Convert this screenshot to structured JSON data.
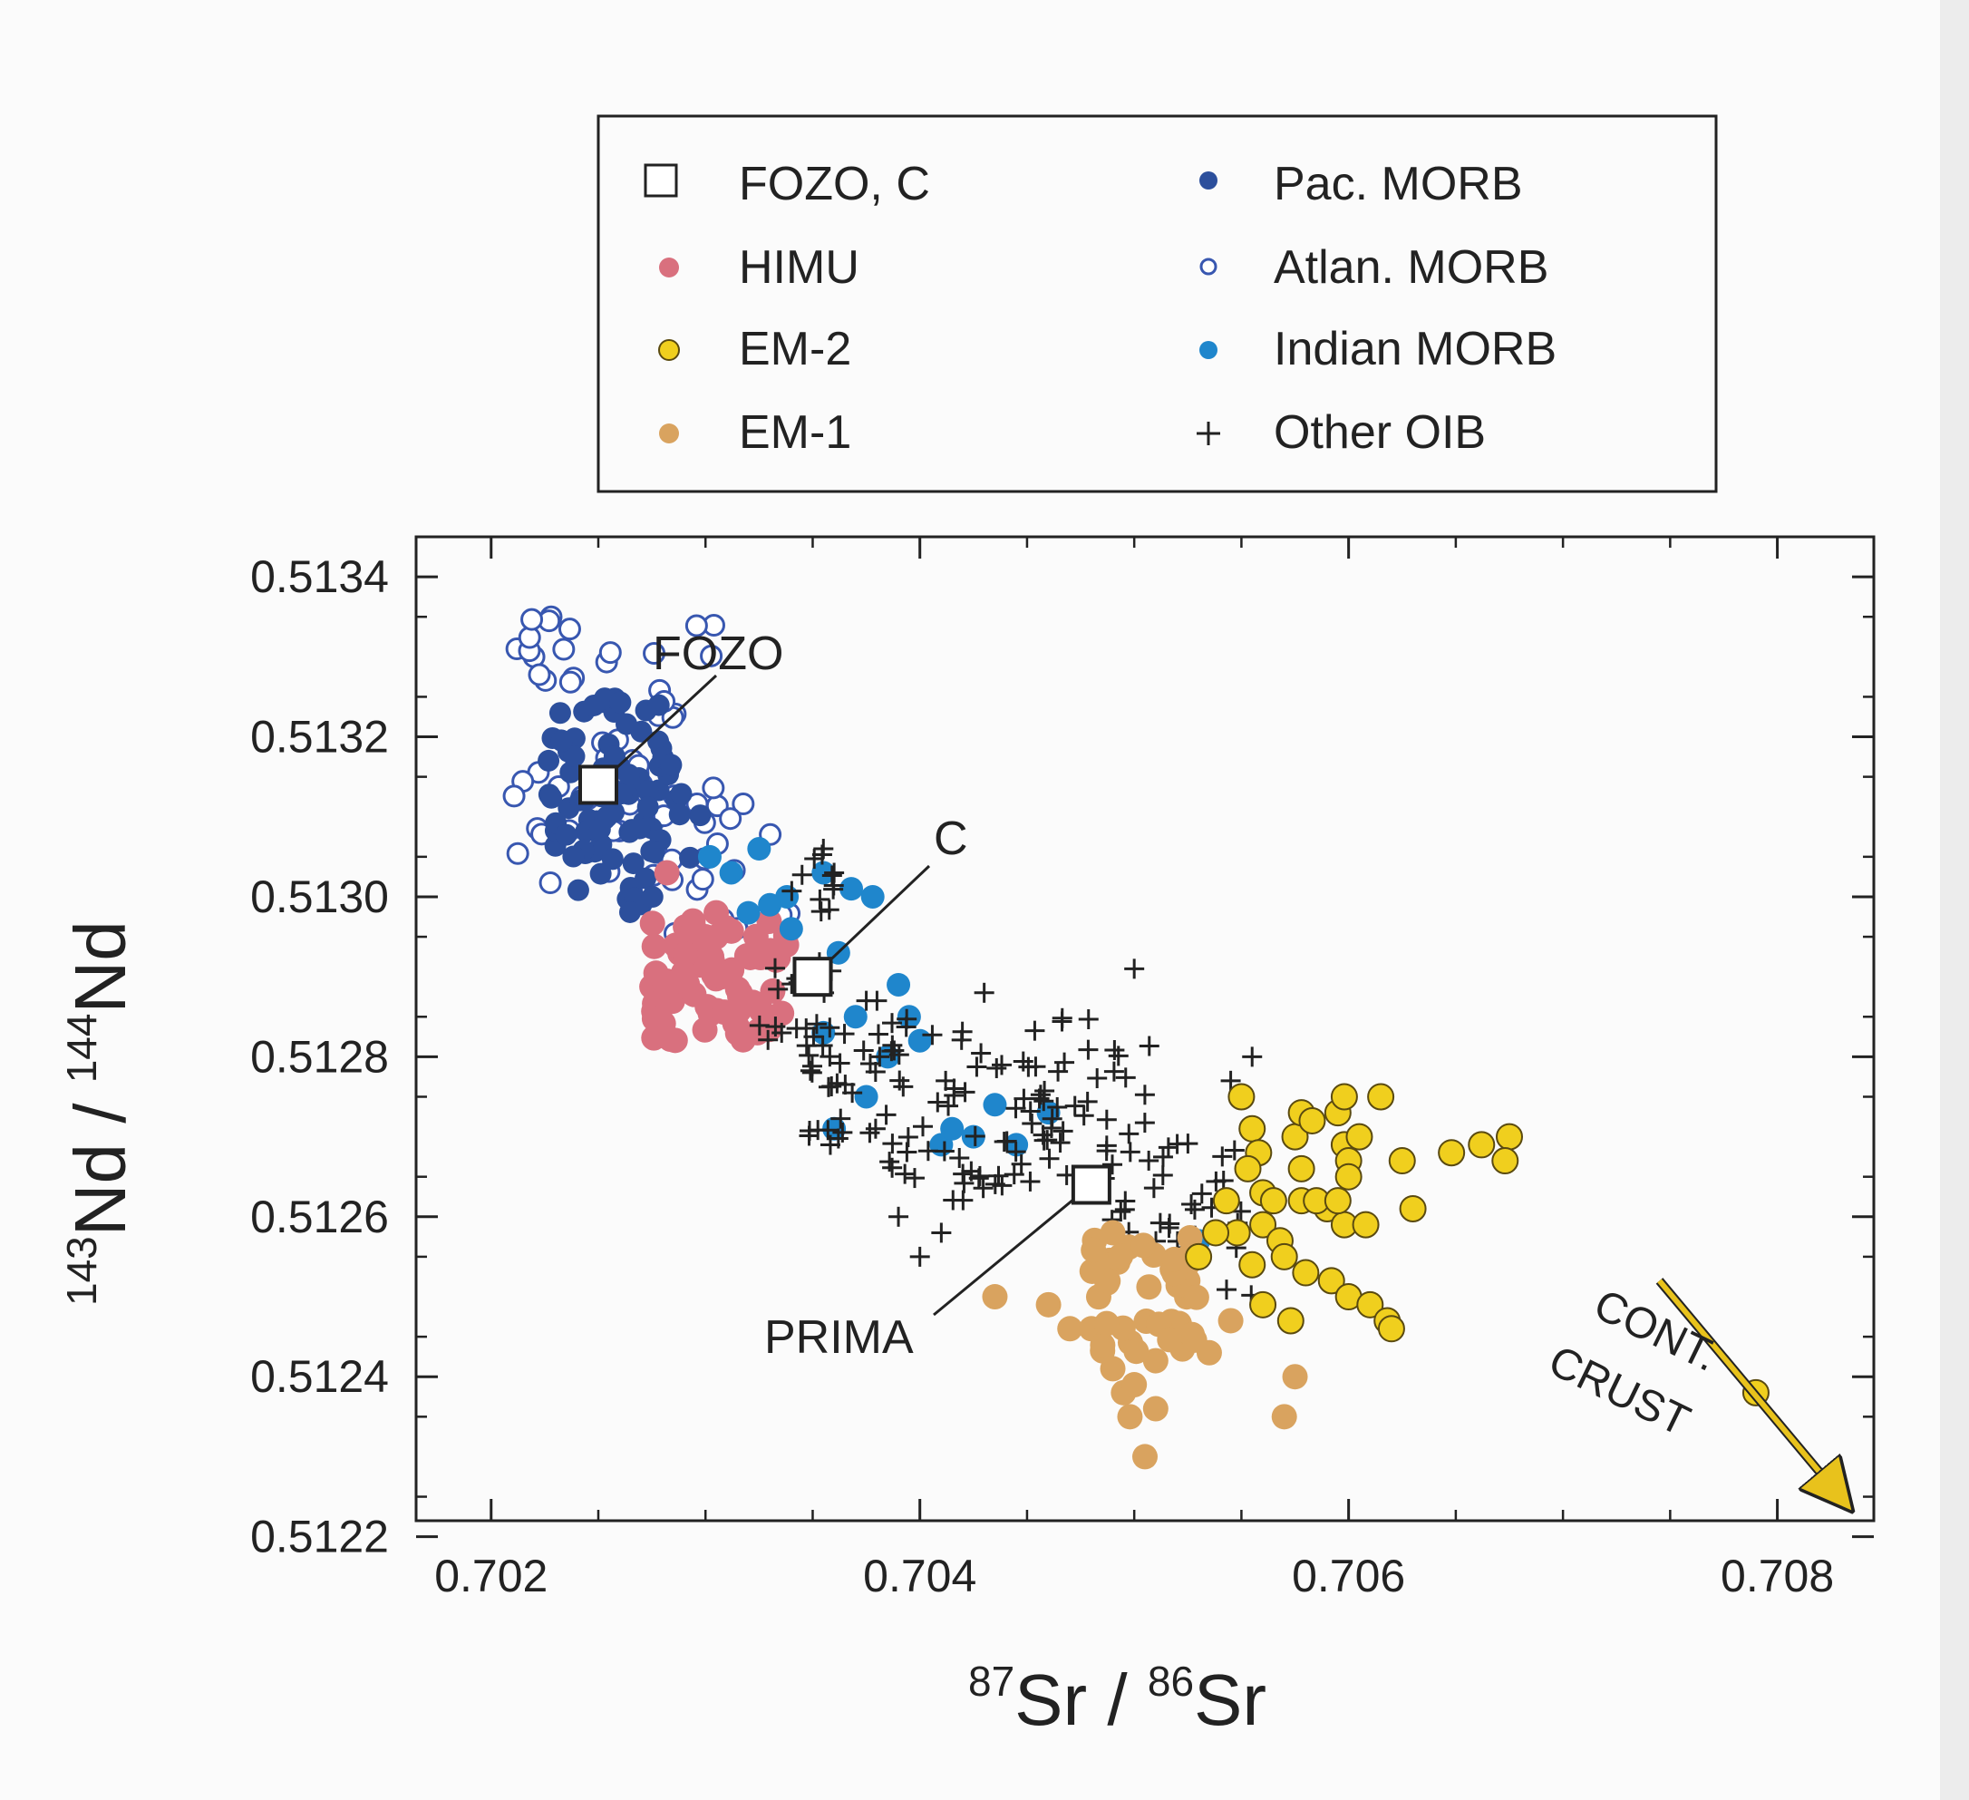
{
  "colors": {
    "pac_morb": "#2c4f9c",
    "atlan_morb_edge": "#3857b0",
    "indian_morb": "#1f86cc",
    "himu": "#d9707e",
    "em2_fill": "#f0cf1e",
    "em2_edge": "#5a4a10",
    "em1": "#d9a35f",
    "other_oib": "#222222",
    "arrow": "#e8c21c"
  },
  "legend": {
    "fozo_c": "FOZO, C",
    "himu": "HIMU",
    "em2": "EM-2",
    "em1": "EM-1",
    "pac_morb": "Pac. MORB",
    "atlan_morb": "Atlan. MORB",
    "indian_morb": "Indian MORB",
    "other_oib": "Other OIB"
  },
  "axes": {
    "ylabel": {
      "sup1": "143",
      "base1": "Nd / ",
      "sup2": "144",
      "base2": "Nd"
    },
    "xlabel": {
      "sup1": "87",
      "base1": "Sr / ",
      "sup2": "86",
      "base2": "Sr"
    },
    "xticks": [
      "0.702",
      "0.704",
      "0.706",
      "0.708"
    ],
    "yticks": [
      "0.5122",
      "0.5124",
      "0.5126",
      "0.5128",
      "0.5130",
      "0.5132",
      "0.5134"
    ]
  },
  "annotations": {
    "fozo": "FOZO",
    "c": "C",
    "prima": "PRIMA",
    "cont": "CONT.",
    "crust": "CRUST"
  },
  "chart_data": {
    "type": "scatter",
    "xlim": [
      0.70165,
      0.70845
    ],
    "ylim": [
      0.51222,
      0.51345
    ],
    "legend_position": "top, above plot",
    "grid": false,
    "components": [
      {
        "name": "FOZO",
        "x": 0.7025,
        "y": 0.51314
      },
      {
        "name": "C",
        "x": 0.7035,
        "y": 0.5129
      },
      {
        "name": "PRIMA",
        "x": 0.7048,
        "y": 0.51264
      }
    ],
    "arrow": {
      "label": "CONT. CRUST",
      "from": [
        0.70745,
        0.51252
      ],
      "to": [
        0.7084,
        0.51223
      ]
    },
    "series": [
      {
        "name": "Pac. MORB",
        "clusters": [
          {
            "x": [
              0.70225,
              0.70285
            ],
            "y": [
              0.51305,
              0.51325
            ],
            "n": 60
          },
          {
            "x": [
              0.70235,
              0.703
            ],
            "y": [
              0.51298,
              0.51318
            ],
            "n": 30
          }
        ]
      },
      {
        "name": "Atlan. MORB",
        "clusters": [
          {
            "x": [
              0.7021,
              0.7031
            ],
            "y": [
              0.513,
              0.51335
            ],
            "n": 55
          },
          {
            "x": [
              0.7028,
              0.7035
            ],
            "y": [
              0.51295,
              0.51315
            ],
            "n": 20
          }
        ],
        "points": [
          [
            0.70228,
            0.51335
          ],
          [
            0.70212,
            0.51331
          ],
          [
            0.7022,
            0.5133
          ]
        ]
      },
      {
        "name": "Indian MORB",
        "points": [
          [
            0.70302,
            0.51305
          ],
          [
            0.70312,
            0.51303
          ],
          [
            0.70325,
            0.51306
          ],
          [
            0.70338,
            0.513
          ],
          [
            0.70355,
            0.51303
          ],
          [
            0.70368,
            0.51301
          ],
          [
            0.70378,
            0.513
          ],
          [
            0.7032,
            0.51298
          ],
          [
            0.7034,
            0.51296
          ],
          [
            0.70362,
            0.51293
          ],
          [
            0.7037,
            0.51285
          ],
          [
            0.7039,
            0.51289
          ],
          [
            0.70395,
            0.51285
          ],
          [
            0.704,
            0.51282
          ],
          [
            0.70385,
            0.5128
          ],
          [
            0.70375,
            0.51275
          ],
          [
            0.70355,
            0.51283
          ],
          [
            0.7036,
            0.51271
          ],
          [
            0.7041,
            0.51269
          ],
          [
            0.70415,
            0.51271
          ],
          [
            0.70425,
            0.5127
          ],
          [
            0.70435,
            0.51274
          ],
          [
            0.70445,
            0.51269
          ],
          [
            0.7046,
            0.51273
          ],
          [
            0.7053,
            0.51257
          ],
          [
            0.7033,
            0.51299
          ]
        ]
      },
      {
        "name": "HIMU",
        "clusters": [
          {
            "x": [
              0.70275,
              0.7034
            ],
            "y": [
              0.51282,
              0.51297
            ],
            "n": 75
          }
        ],
        "points": [
          [
            0.70282,
            0.51303
          ],
          [
            0.703,
            0.51295
          ],
          [
            0.70305,
            0.51298
          ]
        ]
      },
      {
        "name": "EM-2",
        "points": [
          [
            0.7055,
            0.51275
          ],
          [
            0.70555,
            0.51271
          ],
          [
            0.70558,
            0.51268
          ],
          [
            0.70553,
            0.51266
          ],
          [
            0.7056,
            0.51263
          ],
          [
            0.70565,
            0.51262
          ],
          [
            0.70575,
            0.5127
          ],
          [
            0.70578,
            0.51273
          ],
          [
            0.70583,
            0.51272
          ],
          [
            0.70595,
            0.51273
          ],
          [
            0.70598,
            0.51269
          ],
          [
            0.706,
            0.51267
          ],
          [
            0.70605,
            0.5127
          ],
          [
            0.70598,
            0.51275
          ],
          [
            0.706,
            0.51265
          ],
          [
            0.7056,
            0.51259
          ],
          [
            0.70568,
            0.51257
          ],
          [
            0.70578,
            0.51262
          ],
          [
            0.7059,
            0.51261
          ],
          [
            0.70598,
            0.51259
          ],
          [
            0.70608,
            0.51259
          ],
          [
            0.7057,
            0.51255
          ],
          [
            0.7058,
            0.51253
          ],
          [
            0.70592,
            0.51252
          ],
          [
            0.706,
            0.5125
          ],
          [
            0.7061,
            0.51249
          ],
          [
            0.70618,
            0.51247
          ],
          [
            0.7056,
            0.51249
          ],
          [
            0.70573,
            0.51247
          ],
          [
            0.70578,
            0.51266
          ],
          [
            0.70585,
            0.51262
          ],
          [
            0.70595,
            0.51262
          ],
          [
            0.70543,
            0.51262
          ],
          [
            0.70548,
            0.51258
          ],
          [
            0.70555,
            0.51254
          ],
          [
            0.7053,
            0.51255
          ],
          [
            0.70538,
            0.51258
          ],
          [
            0.70615,
            0.51275
          ],
          [
            0.70625,
            0.51267
          ],
          [
            0.7063,
            0.51261
          ],
          [
            0.70648,
            0.51268
          ],
          [
            0.70662,
            0.51269
          ],
          [
            0.70675,
            0.5127
          ],
          [
            0.70673,
            0.51267
          ],
          [
            0.7062,
            0.51246
          ],
          [
            0.7079,
            0.51238
          ]
        ]
      },
      {
        "name": "EM-1",
        "clusters": [
          {
            "x": [
              0.7048,
              0.7053
            ],
            "y": [
              0.51243,
              0.51258
            ],
            "n": 40
          }
        ],
        "points": [
          [
            0.7046,
            0.51249
          ],
          [
            0.7047,
            0.51246
          ],
          [
            0.7048,
            0.51246
          ],
          [
            0.70435,
            0.5125
          ],
          [
            0.7049,
            0.51241
          ],
          [
            0.70495,
            0.51238
          ],
          [
            0.705,
            0.51239
          ],
          [
            0.7051,
            0.51236
          ],
          [
            0.7051,
            0.51242
          ],
          [
            0.7052,
            0.51245
          ],
          [
            0.70535,
            0.51243
          ],
          [
            0.70545,
            0.51247
          ],
          [
            0.70575,
            0.5124
          ],
          [
            0.7057,
            0.51235
          ],
          [
            0.70505,
            0.5123
          ],
          [
            0.70498,
            0.51235
          ],
          [
            0.70525,
            0.51252
          ],
          [
            0.7049,
            0.51258
          ]
        ]
      },
      {
        "name": "Other OIB",
        "clusters": [
          {
            "x": [
              0.7032,
              0.7036
            ],
            "y": [
              0.5128,
              0.51292
            ],
            "n": 20
          },
          {
            "x": [
              0.70345,
              0.70395
            ],
            "y": [
              0.51268,
              0.51285
            ],
            "n": 35
          },
          {
            "x": [
              0.7038,
              0.7044
            ],
            "y": [
              0.51262,
              0.51285
            ],
            "n": 25
          },
          {
            "x": [
              0.7041,
              0.7047
            ],
            "y": [
              0.51262,
              0.5128
            ],
            "n": 35
          },
          {
            "x": [
              0.7045,
              0.7051
            ],
            "y": [
              0.5127,
              0.51285
            ],
            "n": 25
          },
          {
            "x": [
              0.7048,
              0.7055
            ],
            "y": [
              0.51256,
              0.5127
            ],
            "n": 30
          },
          {
            "x": [
              0.7052,
              0.70555
            ],
            "y": [
              0.5125,
              0.51262
            ],
            "n": 12
          },
          {
            "x": [
              0.7034,
              0.7036
            ],
            "y": [
              0.51298,
              0.51306
            ],
            "n": 10
          }
        ],
        "points": [
          [
            0.705,
            0.51291
          ],
          [
            0.70555,
            0.5128
          ],
          [
            0.70545,
            0.51277
          ],
          [
            0.7043,
            0.51288
          ],
          [
            0.7038,
            0.51287
          ],
          [
            0.70355,
            0.51306
          ],
          [
            0.7036,
            0.51303
          ],
          [
            0.70375,
            0.51287
          ],
          [
            0.704,
            0.51255
          ],
          [
            0.7039,
            0.5126
          ],
          [
            0.7041,
            0.51258
          ]
        ]
      }
    ]
  }
}
